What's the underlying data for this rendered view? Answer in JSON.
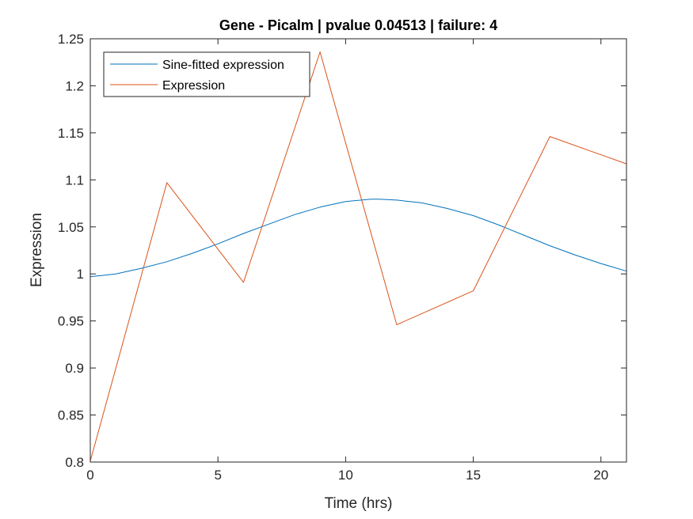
{
  "chart_data": {
    "type": "line",
    "title": "Gene - Picalm | pvalue 0.04513 | failure: 4",
    "xlabel": "Time (hrs)",
    "ylabel": "Expression",
    "xlim": [
      0,
      21
    ],
    "ylim": [
      0.8,
      1.25
    ],
    "xticks": [
      0,
      5,
      10,
      15,
      20
    ],
    "xtick_labels": [
      "0",
      "5",
      "10",
      "15",
      "20"
    ],
    "yticks": [
      0.8,
      0.85,
      0.9,
      0.95,
      1.0,
      1.05,
      1.1,
      1.15,
      1.2,
      1.25
    ],
    "ytick_labels": [
      "0.8",
      "0.85",
      "0.9",
      "0.95",
      "1",
      "1.05",
      "1.1",
      "1.15",
      "1.2",
      "1.25"
    ],
    "grid": false,
    "legend_position": "top-left",
    "series": [
      {
        "name": "Sine-fitted expression",
        "color": "#0072BD",
        "x": [
          0,
          1,
          2,
          3,
          4,
          5,
          6,
          7,
          8,
          9,
          10,
          11,
          11.3,
          12,
          13,
          14,
          15,
          16,
          17,
          18,
          19,
          20,
          21
        ],
        "values": [
          0.997,
          1.0,
          1.006,
          1.013,
          1.022,
          1.032,
          1.043,
          1.053,
          1.063,
          1.071,
          1.077,
          1.0795,
          1.0795,
          1.0785,
          1.0755,
          1.0695,
          1.062,
          1.052,
          1.041,
          1.03,
          1.02,
          1.011,
          1.003
        ]
      },
      {
        "name": "Expression",
        "color": "#D95319",
        "x": [
          0,
          3,
          6,
          9,
          12,
          15,
          18,
          21
        ],
        "values": [
          0.801,
          1.097,
          0.991,
          1.236,
          0.946,
          0.982,
          1.146,
          1.117
        ]
      }
    ]
  }
}
